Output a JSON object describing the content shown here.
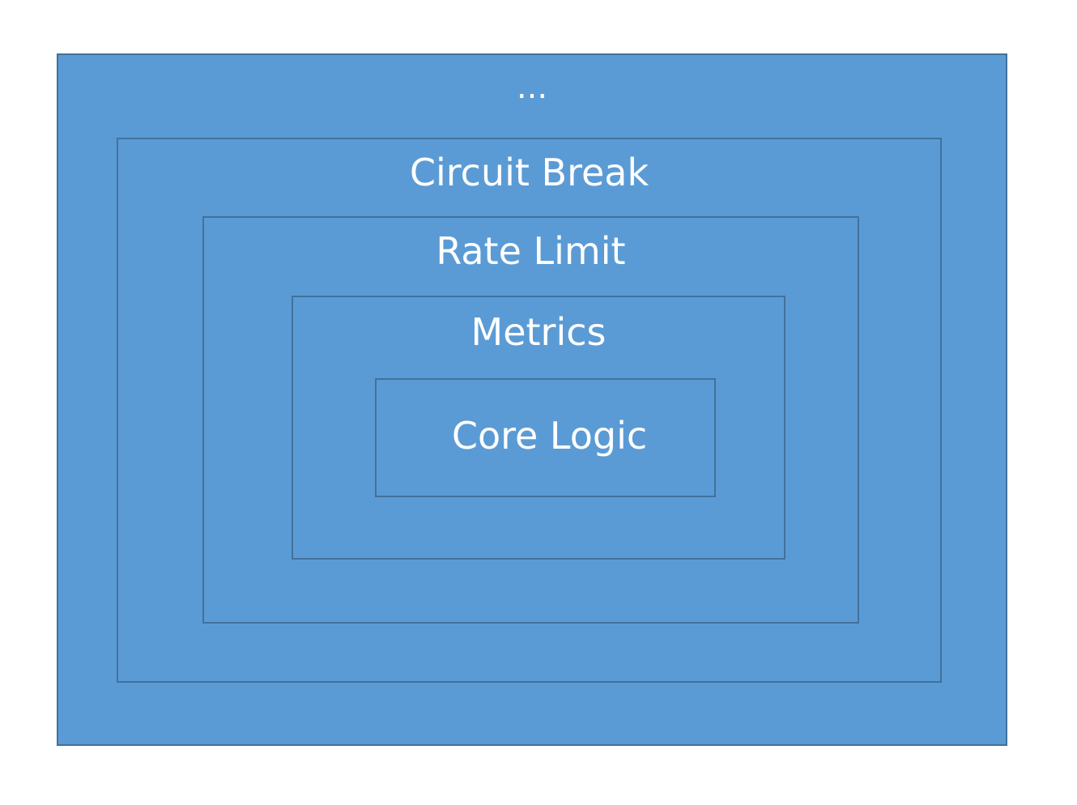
{
  "diagram": {
    "layers": {
      "outer": {
        "label": "..."
      },
      "circuit_break": {
        "label": "Circuit Break"
      },
      "rate_limit": {
        "label": "Rate Limit"
      },
      "metrics": {
        "label": "Metrics"
      },
      "core_logic": {
        "label": "Core Logic"
      }
    },
    "colors": {
      "fill": "#5b9bd5",
      "border": "#41719c",
      "text": "#ffffff",
      "background": "#ffffff"
    }
  }
}
